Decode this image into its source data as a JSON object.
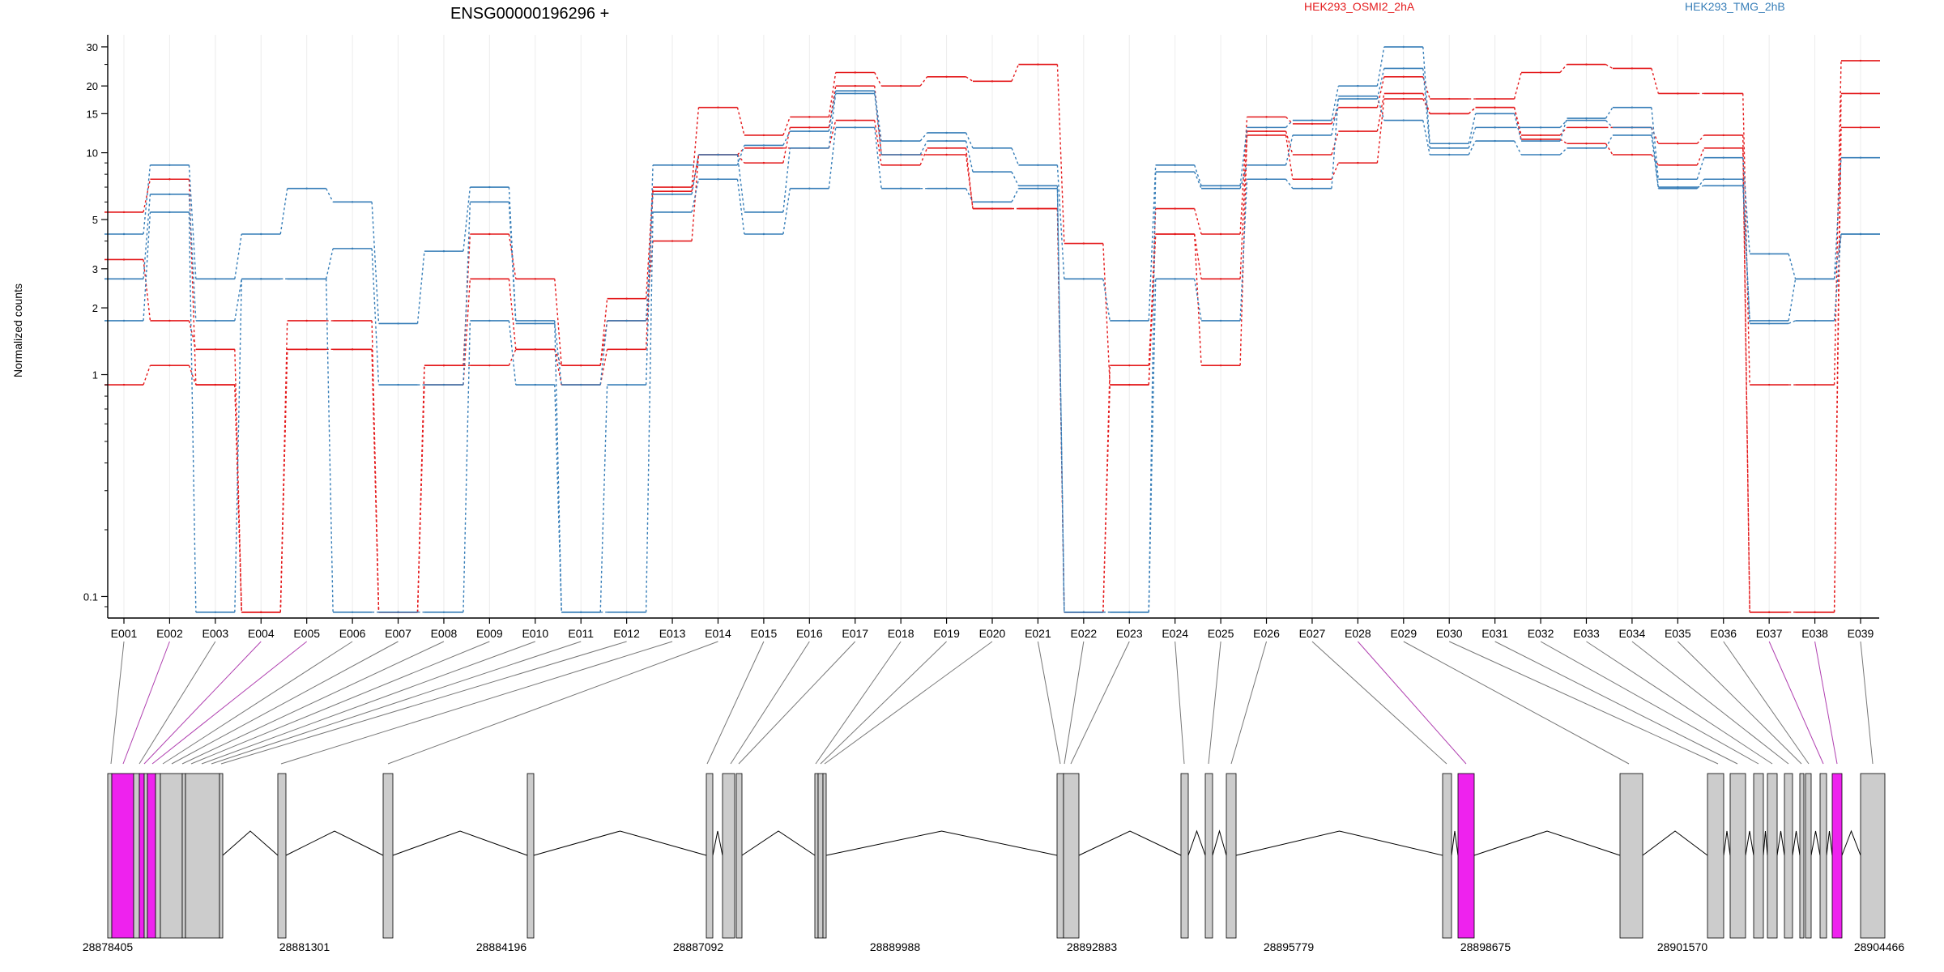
{
  "chart_data": {
    "type": "line",
    "title": "ENSG00000196296 +",
    "ylabel": "Normalized counts",
    "yscale": "log",
    "ylim": [
      0.08,
      34
    ],
    "yticks": [
      0.1,
      1,
      2,
      3,
      5,
      10,
      15,
      20,
      30
    ],
    "ytick_labels": [
      "0.1",
      "1",
      "2",
      "3",
      "5",
      "10",
      "15",
      "20",
      "30"
    ],
    "grid": "vertical",
    "legend": [
      {
        "label": "HEK293_OSMI2_2hA",
        "color": "#e41a1c"
      },
      {
        "label": "HEK293_TMG_2hB",
        "color": "#377eb8"
      }
    ],
    "categories": [
      "E001",
      "E002",
      "E003",
      "E004",
      "E005",
      "E006",
      "E007",
      "E008",
      "E009",
      "E010",
      "E011",
      "E012",
      "E013",
      "E014",
      "E015",
      "E016",
      "E017",
      "E018",
      "E019",
      "E020",
      "E021",
      "E022",
      "E023",
      "E024",
      "E025",
      "E026",
      "E027",
      "E028",
      "E029",
      "E030",
      "E031",
      "E032",
      "E033",
      "E034",
      "E035",
      "E036",
      "E037",
      "E038",
      "E039"
    ],
    "series": [
      {
        "color": "#e41a1c",
        "values": [
          5.4,
          7.6,
          0.9,
          0.085,
          1.75,
          1.75,
          0.085,
          1.1,
          4.3,
          2.7,
          1.1,
          2.2,
          7.0,
          16,
          12,
          14.5,
          23,
          20,
          22,
          21,
          25,
          3.9,
          0.9,
          5.6,
          4.3,
          14.5,
          13.5,
          16,
          22,
          17.5,
          17.5,
          23,
          25,
          24,
          18.5,
          18.5,
          0.9,
          0.9,
          26
        ]
      },
      {
        "color": "#e41a1c",
        "values": [
          3.3,
          1.75,
          1.3,
          0.085,
          1.3,
          1.3,
          0.085,
          0.9,
          2.7,
          1.3,
          0.9,
          1.3,
          6.7,
          9.8,
          9.0,
          13.0,
          20,
          9.8,
          9.8,
          5.6,
          5.6,
          0.085,
          1.1,
          4.3,
          2.7,
          12.5,
          9.8,
          12.5,
          18.5,
          15,
          16,
          12,
          13,
          13,
          11,
          12,
          0.085,
          0.085,
          18.5
        ]
      },
      {
        "color": "#e41a1c",
        "values": [
          0.9,
          1.1,
          0.9,
          0.085,
          1.3,
          1.3,
          0.085,
          1.1,
          1.1,
          1.3,
          1.1,
          1.75,
          4.0,
          9.8,
          10.5,
          10.5,
          14,
          8.8,
          10.5,
          5.6,
          5.6,
          0.085,
          0.9,
          4.3,
          1.1,
          12,
          7.6,
          9.0,
          17.5,
          15,
          16,
          11.5,
          11,
          9.8,
          8.8,
          10.5,
          0.085,
          0.085,
          13
        ]
      },
      {
        "color": "#377eb8",
        "values": [
          4.3,
          8.8,
          2.7,
          4.3,
          6.9,
          6.0,
          1.7,
          3.6,
          7.0,
          1.75,
          0.085,
          0.9,
          8.8,
          8.8,
          10.8,
          12.5,
          19,
          11.3,
          12.3,
          10.5,
          8.8,
          2.7,
          1.75,
          8.8,
          7.1,
          13,
          14,
          20,
          30,
          11,
          15,
          11.3,
          14.3,
          16,
          7.6,
          9.5,
          3.5,
          2.7,
          9.5
        ]
      },
      {
        "color": "#377eb8",
        "values": [
          2.7,
          6.5,
          1.75,
          2.7,
          2.7,
          3.7,
          0.9,
          0.9,
          6.0,
          1.7,
          0.9,
          1.75,
          6.5,
          9.8,
          5.4,
          10.5,
          18.5,
          9.8,
          11.3,
          8.2,
          7.1,
          0.085,
          0.085,
          8.2,
          6.9,
          8.8,
          12,
          17.5,
          24,
          10.5,
          13,
          13,
          14,
          13,
          7.0,
          7.1,
          1.75,
          2.7,
          4.3
        ]
      },
      {
        "color": "#377eb8",
        "values": [
          1.75,
          5.4,
          0.085,
          2.7,
          2.7,
          0.085,
          0.085,
          0.085,
          1.75,
          0.9,
          0.085,
          0.085,
          5.4,
          7.6,
          4.3,
          6.9,
          13,
          6.9,
          6.9,
          6.0,
          6.9,
          0.085,
          0.085,
          2.7,
          1.75,
          7.6,
          6.9,
          18,
          14,
          9.8,
          11.3,
          9.8,
          10.5,
          12,
          6.9,
          7.6,
          1.7,
          1.75,
          4.3
        ]
      }
    ],
    "gene_coordinates": [
      "28878405",
      "28881301",
      "28884196",
      "28887092",
      "28889988",
      "28892883",
      "28895779",
      "28898675",
      "28901570",
      "28904466"
    ]
  }
}
